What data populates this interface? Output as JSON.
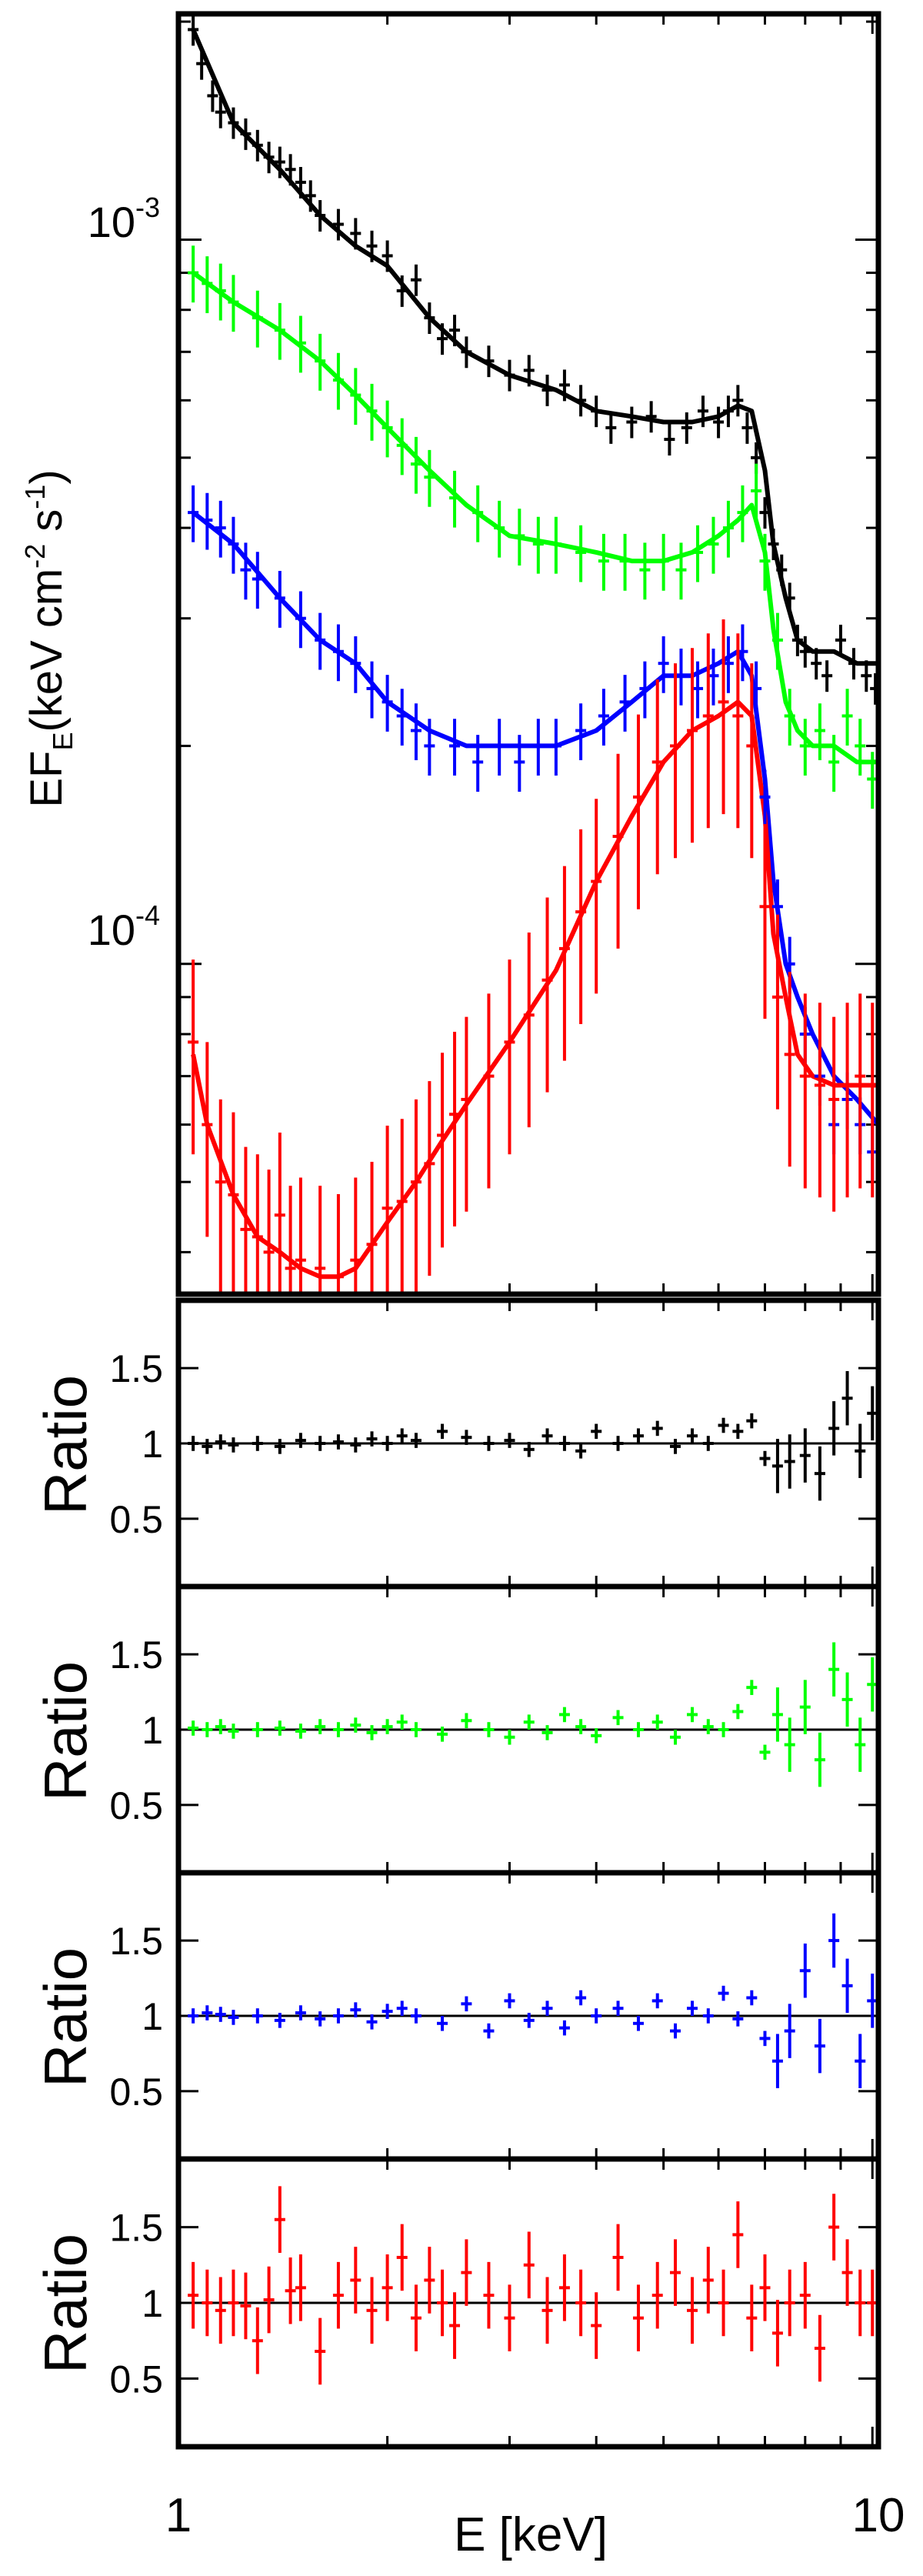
{
  "figure": {
    "xlabel": "E [keV]",
    "xticks": [
      "1",
      "10"
    ]
  },
  "colors": {
    "black": "#000000",
    "green": "#00ff00",
    "blue": "#0000ff",
    "red": "#ff0000"
  },
  "chart_data": [
    {
      "type": "scatter",
      "panel": "spectrum",
      "ylabel": "EF_E (keV cm^-2 s^-1)",
      "ylabel_parts": [
        "EF",
        "E",
        "(keV cm",
        "-2",
        " s",
        "-1",
        ")"
      ],
      "xscale": "log",
      "yscale": "log",
      "xlim": [
        1.0,
        10.2
      ],
      "ylim": [
        3.5e-05,
        0.00205
      ],
      "yticklabels": [
        {
          "value": 0.001,
          "text": "10^-3",
          "base": "10",
          "exp": "-3"
        },
        {
          "value": 0.0001,
          "text": "10^-4",
          "base": "10",
          "exp": "-4"
        }
      ],
      "series": [
        {
          "color": "black",
          "x": [
            1.05,
            1.08,
            1.12,
            1.15,
            1.2,
            1.25,
            1.3,
            1.35,
            1.4,
            1.45,
            1.5,
            1.55,
            1.6,
            1.7,
            1.8,
            1.9,
            2.0,
            2.1,
            2.2,
            2.3,
            2.4,
            2.5,
            2.6,
            2.8,
            3.0,
            3.2,
            3.4,
            3.6,
            3.8,
            4.0,
            4.2,
            4.5,
            4.8,
            5.1,
            5.4,
            5.7,
            6.0,
            6.2,
            6.4,
            6.6,
            6.8,
            7.0,
            7.2,
            7.4,
            7.6,
            7.8,
            8.0,
            8.3,
            8.6,
            9.0,
            9.4,
            9.8,
            10.1
          ],
          "y": [
            0.00195,
            0.00175,
            0.00158,
            0.0015,
            0.00145,
            0.0014,
            0.00135,
            0.0013,
            0.00128,
            0.00125,
            0.0012,
            0.00115,
            0.00108,
            0.00105,
            0.00102,
            0.00098,
            0.00095,
            0.00085,
            0.00088,
            0.00078,
            0.00073,
            0.00075,
            0.0007,
            0.00068,
            0.00065,
            0.00066,
            0.00062,
            0.00063,
            0.0006,
            0.00058,
            0.00055,
            0.00056,
            0.00057,
            0.00053,
            0.00055,
            0.00058,
            0.00056,
            0.00058,
            0.0006,
            0.00055,
            0.0005,
            0.00042,
            0.00038,
            0.00035,
            0.00032,
            0.00028,
            0.00027,
            0.00026,
            0.00025,
            0.00028,
            0.00026,
            0.00025,
            0.00024
          ]
        },
        {
          "color": "green",
          "x": [
            1.05,
            1.1,
            1.15,
            1.2,
            1.3,
            1.4,
            1.5,
            1.6,
            1.7,
            1.8,
            1.9,
            2.0,
            2.1,
            2.2,
            2.3,
            2.5,
            2.7,
            2.9,
            3.1,
            3.3,
            3.5,
            3.8,
            4.1,
            4.4,
            4.7,
            5.0,
            5.3,
            5.6,
            5.9,
            6.2,
            6.5,
            6.8,
            7.0,
            7.3,
            7.6,
            8.0,
            8.4,
            8.8,
            9.2,
            9.6,
            10.0
          ],
          "y": [
            0.0009,
            0.00087,
            0.00085,
            0.00082,
            0.00078,
            0.00075,
            0.00072,
            0.00068,
            0.00064,
            0.00061,
            0.00058,
            0.00055,
            0.00052,
            0.00049,
            0.00047,
            0.00044,
            0.00042,
            0.0004,
            0.00039,
            0.00038,
            0.00038,
            0.00037,
            0.00036,
            0.00036,
            0.00035,
            0.00036,
            0.00035,
            0.00037,
            0.00038,
            0.0004,
            0.00042,
            0.00045,
            0.00036,
            0.00028,
            0.00022,
            0.0002,
            0.00021,
            0.00019,
            0.00022,
            0.0002,
            0.00018
          ]
        },
        {
          "color": "blue",
          "x": [
            1.05,
            1.1,
            1.15,
            1.2,
            1.25,
            1.3,
            1.4,
            1.5,
            1.6,
            1.7,
            1.8,
            1.9,
            2.0,
            2.1,
            2.2,
            2.3,
            2.5,
            2.7,
            2.9,
            3.1,
            3.3,
            3.5,
            3.8,
            4.1,
            4.4,
            4.7,
            5.0,
            5.3,
            5.6,
            5.9,
            6.2,
            6.5,
            6.8,
            7.0,
            7.3,
            7.6,
            8.0,
            8.4,
            8.8,
            9.2,
            9.6,
            10.0
          ],
          "y": [
            0.00042,
            0.00041,
            0.0004,
            0.00038,
            0.00035,
            0.00034,
            0.00032,
            0.0003,
            0.00028,
            0.00027,
            0.00026,
            0.00024,
            0.00023,
            0.00022,
            0.00021,
            0.0002,
            0.0002,
            0.00019,
            0.0002,
            0.00019,
            0.0002,
            0.0002,
            0.00021,
            0.00022,
            0.00023,
            0.00024,
            0.00026,
            0.00025,
            0.00024,
            0.00025,
            0.00026,
            0.00027,
            0.00024,
            0.00017,
            0.00012,
            0.0001,
            8e-05,
            7e-05,
            6e-05,
            6.5e-05,
            6e-05,
            5.5e-05
          ]
        },
        {
          "color": "red",
          "x": [
            1.05,
            1.1,
            1.15,
            1.2,
            1.25,
            1.3,
            1.35,
            1.4,
            1.45,
            1.5,
            1.6,
            1.7,
            1.8,
            1.9,
            2.0,
            2.1,
            2.2,
            2.3,
            2.4,
            2.5,
            2.6,
            2.8,
            3.0,
            3.2,
            3.4,
            3.6,
            3.8,
            4.0,
            4.3,
            4.6,
            4.9,
            5.2,
            5.5,
            5.8,
            6.1,
            6.4,
            6.7,
            7.0,
            7.3,
            7.6,
            8.0,
            8.4,
            8.8,
            9.2,
            9.6,
            10.0
          ],
          "y": [
            7.8e-05,
            6e-05,
            5e-05,
            4.8e-05,
            4.3e-05,
            4.2e-05,
            4e-05,
            4.5e-05,
            3.8e-05,
            3.9e-05,
            3.8e-05,
            3.7e-05,
            3.9e-05,
            4.1e-05,
            4.6e-05,
            4.7e-05,
            5e-05,
            5.3e-05,
            5.8e-05,
            6.2e-05,
            6.5e-05,
            7e-05,
            7.8e-05,
            8.5e-05,
            9.5e-05,
            0.000105,
            0.000118,
            0.00013,
            0.00015,
            0.00017,
            0.00019,
            0.0002,
            0.00021,
            0.00022,
            0.00023,
            0.00022,
            0.0002,
            0.00012,
            9e-05,
            7.5e-05,
            7e-05,
            6.8e-05,
            6.5e-05,
            6.8e-05,
            7e-05,
            6.8e-05
          ]
        }
      ],
      "models": [
        {
          "color": "black",
          "x": [
            1.05,
            1.2,
            1.4,
            1.6,
            1.8,
            2.0,
            2.3,
            2.6,
            3.0,
            3.5,
            4.0,
            4.5,
            5.0,
            5.5,
            6.0,
            6.4,
            6.7,
            7.0,
            7.2,
            7.5,
            7.8,
            8.2,
            8.8,
            9.5,
            10.2
          ],
          "y": [
            0.00195,
            0.00145,
            0.00125,
            0.00108,
            0.00098,
            0.00092,
            0.00078,
            0.0007,
            0.00065,
            0.00062,
            0.00058,
            0.00057,
            0.00056,
            0.00056,
            0.00057,
            0.00059,
            0.00058,
            0.00048,
            0.00038,
            0.00032,
            0.00028,
            0.00027,
            0.00027,
            0.00026,
            0.00026
          ]
        },
        {
          "color": "green",
          "x": [
            1.05,
            1.2,
            1.4,
            1.6,
            1.8,
            2.0,
            2.3,
            2.6,
            3.0,
            3.5,
            4.0,
            4.5,
            5.0,
            5.5,
            6.0,
            6.4,
            6.7,
            7.0,
            7.2,
            7.5,
            7.8,
            8.2,
            8.8,
            9.5,
            10.2
          ],
          "y": [
            0.0009,
            0.00082,
            0.00075,
            0.00068,
            0.00061,
            0.00055,
            0.00048,
            0.00043,
            0.00039,
            0.00038,
            0.00037,
            0.00036,
            0.00036,
            0.00037,
            0.00039,
            0.00041,
            0.00043,
            0.00037,
            0.00029,
            0.00023,
            0.00021,
            0.0002,
            0.0002,
            0.00019,
            0.00019
          ]
        },
        {
          "color": "blue",
          "x": [
            1.05,
            1.2,
            1.4,
            1.6,
            1.8,
            2.0,
            2.3,
            2.6,
            3.0,
            3.5,
            4.0,
            4.5,
            5.0,
            5.5,
            6.0,
            6.4,
            6.7,
            7.0,
            7.2,
            7.5,
            7.8,
            8.2,
            8.8,
            9.5,
            10.2
          ],
          "y": [
            0.00042,
            0.00038,
            0.00032,
            0.00028,
            0.00026,
            0.00023,
            0.00021,
            0.0002,
            0.0002,
            0.0002,
            0.00021,
            0.00023,
            0.00025,
            0.00025,
            0.00026,
            0.00027,
            0.00025,
            0.00018,
            0.00013,
            0.0001,
            9e-05,
            8e-05,
            7e-05,
            6.5e-05,
            6e-05
          ]
        },
        {
          "color": "red",
          "x": [
            1.05,
            1.1,
            1.2,
            1.3,
            1.4,
            1.5,
            1.6,
            1.7,
            1.8,
            2.0,
            2.2,
            2.4,
            2.6,
            3.0,
            3.5,
            4.0,
            4.5,
            5.0,
            5.5,
            6.0,
            6.4,
            6.7,
            7.0,
            7.2,
            7.5,
            7.8,
            8.2,
            8.8,
            9.5,
            10.2
          ],
          "y": [
            7.5e-05,
            6e-05,
            4.8e-05,
            4.2e-05,
            4e-05,
            3.8e-05,
            3.7e-05,
            3.7e-05,
            3.8e-05,
            4.4e-05,
            5e-05,
            5.7e-05,
            6.4e-05,
            7.8e-05,
            9.8e-05,
            0.00013,
            0.00016,
            0.00019,
            0.00021,
            0.00022,
            0.00023,
            0.00022,
            0.00016,
            0.00011,
            9e-05,
            7.5e-05,
            7e-05,
            6.8e-05,
            6.8e-05,
            6.8e-05
          ]
        }
      ]
    },
    {
      "type": "scatter",
      "panel": "ratio-black",
      "color": "black",
      "ylabel": "Ratio",
      "xscale": "log",
      "xlim": [
        1.0,
        10.2
      ],
      "ylim": [
        0.05,
        1.95
      ],
      "yticks": [
        0.5,
        1,
        1.5
      ],
      "yticklabels": [
        "0.5",
        "1",
        "1.5"
      ],
      "reference_line": 1,
      "x": [
        1.05,
        1.1,
        1.15,
        1.2,
        1.3,
        1.4,
        1.5,
        1.6,
        1.7,
        1.8,
        1.9,
        2.0,
        2.1,
        2.2,
        2.4,
        2.6,
        2.8,
        3.0,
        3.2,
        3.4,
        3.6,
        3.8,
        4.0,
        4.3,
        4.6,
        4.9,
        5.2,
        5.5,
        5.8,
        6.1,
        6.4,
        6.7,
        7.0,
        7.3,
        7.6,
        8.0,
        8.4,
        8.8,
        9.2,
        9.6,
        10.0
      ],
      "y": [
        1.0,
        0.98,
        1.01,
        0.99,
        1.0,
        0.98,
        1.02,
        1.0,
        1.01,
        0.99,
        1.03,
        1.0,
        1.05,
        1.02,
        1.08,
        1.04,
        1.0,
        1.02,
        0.96,
        1.05,
        1.0,
        0.95,
        1.08,
        1.0,
        1.05,
        1.1,
        0.98,
        1.05,
        1.0,
        1.12,
        1.08,
        1.15,
        0.9,
        0.85,
        0.88,
        0.92,
        0.8,
        1.1,
        1.3,
        0.95,
        1.2
      ]
    },
    {
      "type": "scatter",
      "panel": "ratio-green",
      "color": "green",
      "ylabel": "Ratio",
      "xscale": "log",
      "xlim": [
        1.0,
        10.2
      ],
      "ylim": [
        0.05,
        1.95
      ],
      "yticks": [
        0.5,
        1,
        1.5
      ],
      "yticklabels": [
        "0.5",
        "1",
        "1.5"
      ],
      "reference_line": 1,
      "x": [
        1.05,
        1.1,
        1.15,
        1.2,
        1.3,
        1.4,
        1.5,
        1.6,
        1.7,
        1.8,
        1.9,
        2.0,
        2.1,
        2.2,
        2.4,
        2.6,
        2.8,
        3.0,
        3.2,
        3.4,
        3.6,
        3.8,
        4.0,
        4.3,
        4.6,
        4.9,
        5.2,
        5.5,
        5.8,
        6.1,
        6.4,
        6.7,
        7.0,
        7.3,
        7.6,
        8.0,
        8.4,
        8.8,
        9.2,
        9.6,
        10.0
      ],
      "y": [
        1.01,
        1.0,
        1.02,
        0.99,
        1.0,
        1.01,
        0.99,
        1.02,
        1.0,
        1.03,
        0.98,
        1.02,
        1.05,
        1.0,
        0.97,
        1.06,
        1.0,
        0.95,
        1.05,
        0.98,
        1.1,
        1.02,
        0.96,
        1.08,
        1.0,
        1.05,
        0.95,
        1.1,
        1.02,
        1.0,
        1.12,
        1.28,
        0.85,
        1.1,
        0.9,
        1.15,
        0.8,
        1.4,
        1.2,
        0.9,
        1.3
      ]
    },
    {
      "type": "scatter",
      "panel": "ratio-blue",
      "color": "blue",
      "ylabel": "Ratio",
      "xscale": "log",
      "xlim": [
        1.0,
        10.2
      ],
      "ylim": [
        0.05,
        1.95
      ],
      "yticks": [
        0.5,
        1,
        1.5
      ],
      "yticklabels": [
        "0.5",
        "1",
        "1.5"
      ],
      "reference_line": 1,
      "x": [
        1.05,
        1.1,
        1.15,
        1.2,
        1.3,
        1.4,
        1.5,
        1.6,
        1.7,
        1.8,
        1.9,
        2.0,
        2.1,
        2.2,
        2.4,
        2.6,
        2.8,
        3.0,
        3.2,
        3.4,
        3.6,
        3.8,
        4.0,
        4.3,
        4.6,
        4.9,
        5.2,
        5.5,
        5.8,
        6.1,
        6.4,
        6.7,
        7.0,
        7.3,
        7.6,
        8.0,
        8.4,
        8.8,
        9.2,
        9.6,
        10.0
      ],
      "y": [
        1.0,
        1.02,
        1.01,
        0.99,
        1.0,
        0.97,
        1.02,
        0.98,
        1.0,
        1.04,
        0.96,
        1.03,
        1.05,
        1.0,
        0.95,
        1.08,
        0.9,
        1.1,
        0.97,
        1.05,
        0.92,
        1.12,
        1.0,
        1.05,
        0.95,
        1.1,
        0.9,
        1.05,
        1.0,
        1.15,
        0.98,
        1.12,
        0.85,
        0.7,
        0.9,
        1.3,
        0.8,
        1.5,
        1.2,
        0.7,
        1.1
      ]
    },
    {
      "type": "scatter",
      "panel": "ratio-red",
      "color": "red",
      "ylabel": "Ratio",
      "xscale": "log",
      "xlim": [
        1.0,
        10.2
      ],
      "ylim": [
        0.05,
        1.95
      ],
      "yticks": [
        0.5,
        1,
        1.5
      ],
      "yticklabels": [
        "0.5",
        "1",
        "1.5"
      ],
      "reference_line": 1,
      "x": [
        1.05,
        1.1,
        1.15,
        1.2,
        1.25,
        1.3,
        1.35,
        1.4,
        1.45,
        1.5,
        1.6,
        1.7,
        1.8,
        1.9,
        2.0,
        2.1,
        2.2,
        2.3,
        2.4,
        2.5,
        2.6,
        2.8,
        3.0,
        3.2,
        3.4,
        3.6,
        3.8,
        4.0,
        4.3,
        4.6,
        4.9,
        5.2,
        5.5,
        5.8,
        6.1,
        6.4,
        6.7,
        7.0,
        7.3,
        7.6,
        8.0,
        8.4,
        8.8,
        9.2,
        9.6,
        10.0
      ],
      "y": [
        1.05,
        1.0,
        0.95,
        1.0,
        0.98,
        0.75,
        1.02,
        1.55,
        1.08,
        1.1,
        0.68,
        1.05,
        1.15,
        0.95,
        1.1,
        1.3,
        0.9,
        1.15,
        1.0,
        0.85,
        1.2,
        1.05,
        0.9,
        1.25,
        0.95,
        1.1,
        1.0,
        0.85,
        1.3,
        0.9,
        1.05,
        1.2,
        0.95,
        1.15,
        1.0,
        1.45,
        0.9,
        1.1,
        0.8,
        1.0,
        1.05,
        0.7,
        1.5,
        1.2,
        1.0,
        1.0
      ]
    }
  ]
}
